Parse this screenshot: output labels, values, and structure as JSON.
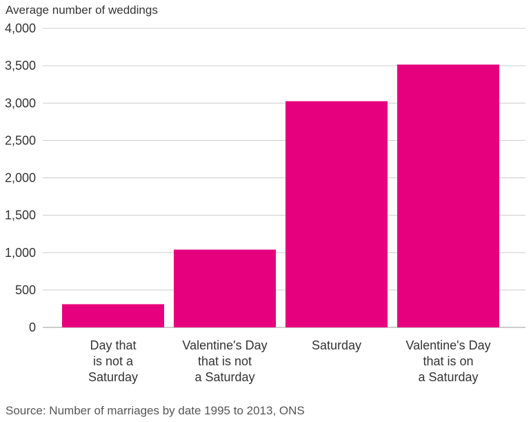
{
  "chart_data": {
    "type": "bar",
    "ylabel": "Average number of weddings",
    "xlabel": "",
    "categories": [
      [
        "Day that",
        "is not a",
        "Saturday"
      ],
      [
        "Valentine's Day",
        "that is not",
        "a Saturday"
      ],
      [
        "Saturday"
      ],
      [
        "Valentine's Day",
        "that is on",
        "a Saturday"
      ]
    ],
    "values": [
      310,
      1040,
      3025,
      3515
    ],
    "ylim": [
      0,
      4000
    ],
    "yticks": [
      0,
      500,
      1000,
      1500,
      2000,
      2500,
      3000,
      3500,
      4000
    ],
    "ytick_labels": [
      "0",
      "500",
      "1,000",
      "1,500",
      "2,000",
      "2,500",
      "3,000",
      "3,500",
      "4,000"
    ],
    "bar_color": "#e6007e",
    "grid": true,
    "legend": "none"
  },
  "source": "Source: Number of marriages by date 1995 to 2013, ONS"
}
